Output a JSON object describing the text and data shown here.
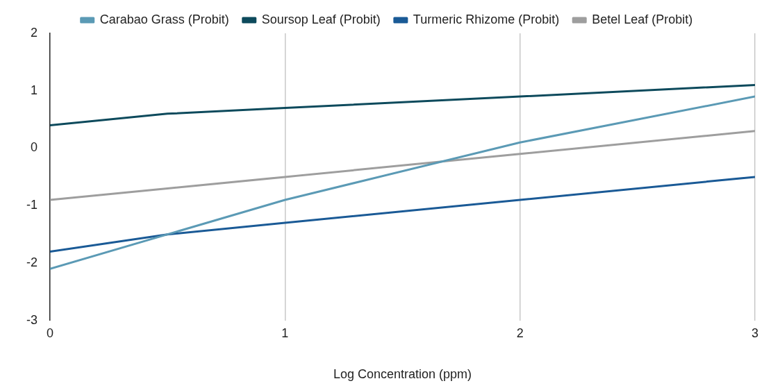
{
  "chart_data": {
    "type": "line",
    "xlabel": "Log Concentration (ppm)",
    "x": [
      0,
      0.5,
      1,
      2,
      3
    ],
    "series": [
      {
        "name": "Carabao Grass (Probit)",
        "color": "#5b9ab5",
        "values": [
          -2.1,
          -1.5,
          -0.9,
          0.1,
          0.9
        ]
      },
      {
        "name": "Soursop Leaf (Probit)",
        "color": "#0d4a5c",
        "values": [
          0.4,
          0.6,
          0.7,
          0.9,
          1.1
        ]
      },
      {
        "name": "Turmeric Rhizome (Probit)",
        "color": "#1a5a96",
        "values": [
          -1.8,
          -1.5,
          -1.3,
          -0.9,
          -0.5
        ]
      },
      {
        "name": "Betel Leaf (Probit)",
        "color": "#9e9e9e",
        "values": [
          -0.9,
          -0.7,
          -0.5,
          -0.1,
          0.3
        ]
      }
    ],
    "xlim": [
      0,
      3
    ],
    "xticks": [
      0,
      1,
      2,
      3
    ],
    "ylim": [
      -3,
      2
    ],
    "yticks": [
      -3,
      -2,
      -1,
      0,
      1,
      2
    ],
    "grid": "x",
    "legend": "top",
    "marker": "none",
    "line_style": "solid"
  }
}
